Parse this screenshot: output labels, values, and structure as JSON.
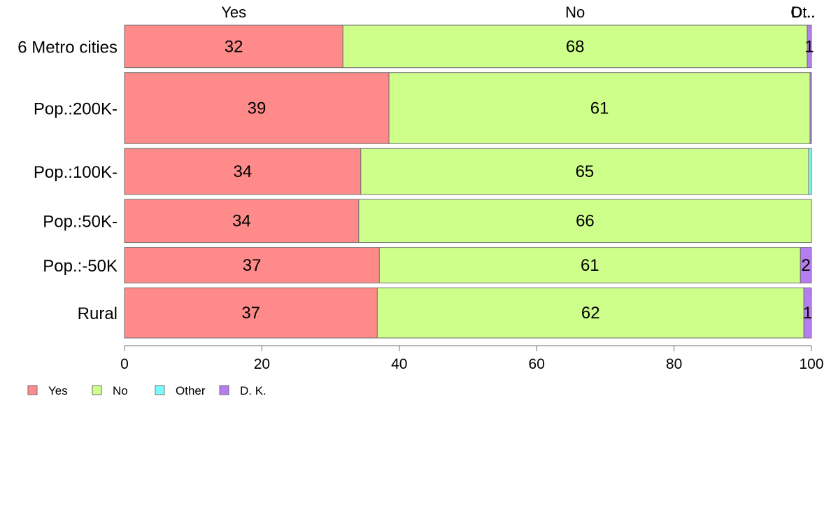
{
  "chart_data": {
    "type": "bar",
    "orientation": "horizontal",
    "stacked": true,
    "title": "",
    "xlabel": "",
    "ylabel": "",
    "xlim": [
      0,
      100
    ],
    "x_ticks": [
      0,
      20,
      40,
      60,
      80,
      100
    ],
    "grid": false,
    "legend_position": "bottom-left",
    "categories": [
      "6 Metro cities",
      "Pop.:200K-",
      "Pop.:100K-",
      "Pop.:50K-",
      "Pop.:-50K",
      "Rural"
    ],
    "relative_bar_widths": [
      61,
      102,
      66,
      62,
      51,
      72
    ],
    "top_labels": [
      "Yes",
      "No",
      "Ot..",
      "D..."
    ],
    "series": [
      {
        "name": "Yes",
        "color": "#ff8a8a",
        "values": [
          31.8,
          38.5,
          34.4,
          34.1,
          37.1,
          36.8
        ],
        "labels": [
          "32",
          "39",
          "34",
          "34",
          "37",
          "37"
        ]
      },
      {
        "name": "No",
        "color": "#ceff8a",
        "values": [
          67.6,
          61.3,
          65.2,
          65.9,
          61.3,
          62.1
        ],
        "labels": [
          "68",
          "61",
          "65",
          "66",
          "61",
          "62"
        ]
      },
      {
        "name": "Other",
        "color": "#7cfcff",
        "values": [
          0.0,
          0.0,
          0.4,
          0.0,
          0.0,
          0.0
        ],
        "labels": [
          "",
          "",
          "",
          "",
          "",
          ""
        ]
      },
      {
        "name": "D. K.",
        "color": "#b67cf2",
        "values": [
          0.6,
          0.2,
          0.0,
          0.0,
          1.6,
          1.1
        ],
        "labels": [
          "1",
          "",
          "",
          "",
          "2",
          "1"
        ]
      }
    ]
  }
}
